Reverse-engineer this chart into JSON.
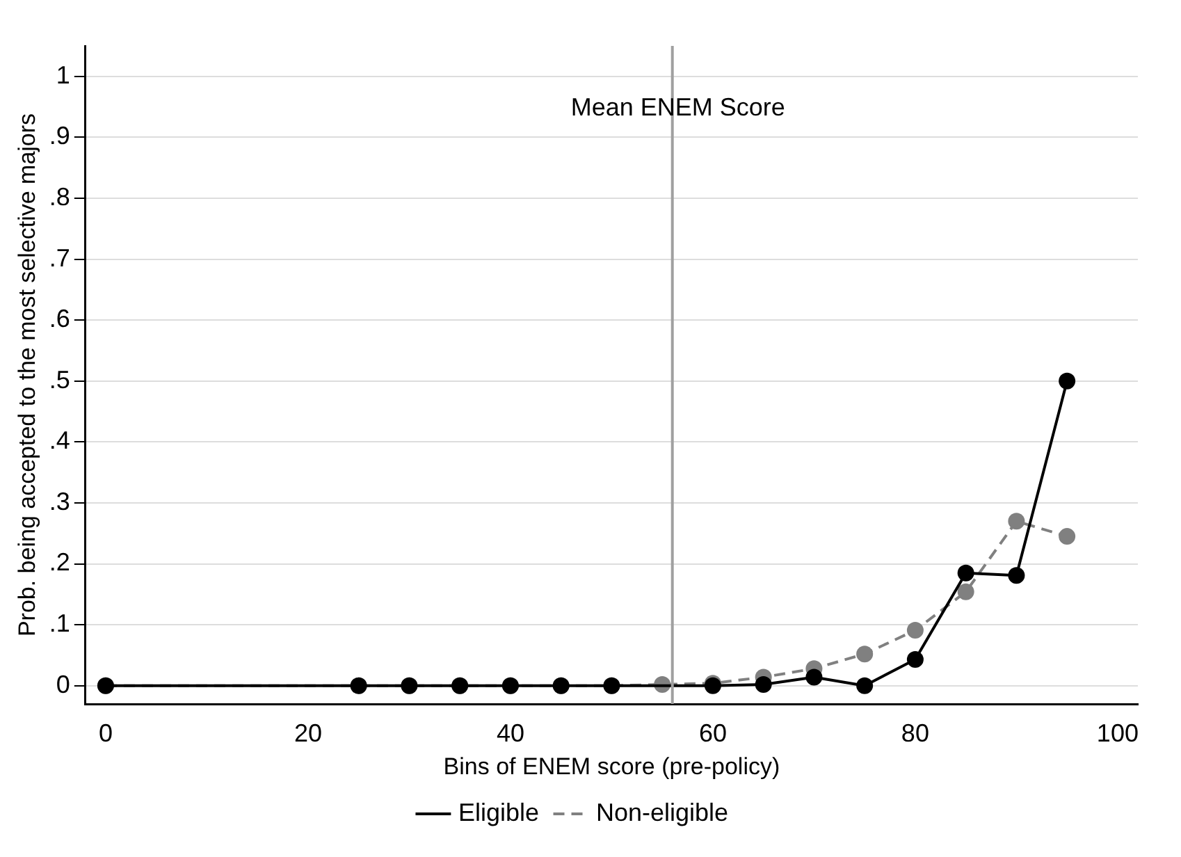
{
  "chart_data": {
    "type": "line",
    "xlabel": "Bins of ENEM score (pre-policy)",
    "ylabel": "Prob. being accepted to the most selective majors",
    "x": [
      0,
      25,
      30,
      35,
      40,
      45,
      50,
      55,
      60,
      65,
      70,
      75,
      80,
      85,
      90,
      95
    ],
    "series": [
      {
        "name": "Eligible",
        "color": "#000000",
        "line_style": "solid",
        "values": [
          0,
          0,
          0,
          0,
          0,
          0,
          0,
          null,
          0,
          0.002,
          0.014,
          0,
          0.043,
          0.185,
          0.181,
          0.5
        ]
      },
      {
        "name": "Non-eligible",
        "color": "#808080",
        "line_style": "dashed",
        "values": [
          0,
          0,
          0,
          0,
          0,
          0,
          0,
          0.002,
          0.004,
          0.014,
          0.028,
          0.052,
          0.091,
          0.154,
          0.27,
          0.245
        ]
      }
    ],
    "xlim": [
      -2,
      102
    ],
    "xticks": [
      0,
      20,
      40,
      60,
      80,
      100
    ],
    "ylim": [
      -0.03,
      1.05
    ],
    "yticks": [
      0,
      {
        "value": 0.1,
        "label": ".1"
      },
      {
        "value": 0.2,
        "label": ".2"
      },
      {
        "value": 0.3,
        "label": ".3"
      },
      {
        "value": 0.4,
        "label": ".4"
      },
      {
        "value": 0.5,
        "label": ".5"
      },
      {
        "value": 0.6,
        "label": ".6"
      },
      {
        "value": 0.7,
        "label": ".7"
      },
      {
        "value": 0.8,
        "label": ".8"
      },
      {
        "value": 0.9,
        "label": ".9"
      },
      1
    ],
    "ref_lines": [
      {
        "axis": "x",
        "value": 56,
        "label": "Mean ENEM Score",
        "color": "#a0a0a0"
      }
    ],
    "grid": "y",
    "legend": "bottom",
    "marker": "circle"
  }
}
